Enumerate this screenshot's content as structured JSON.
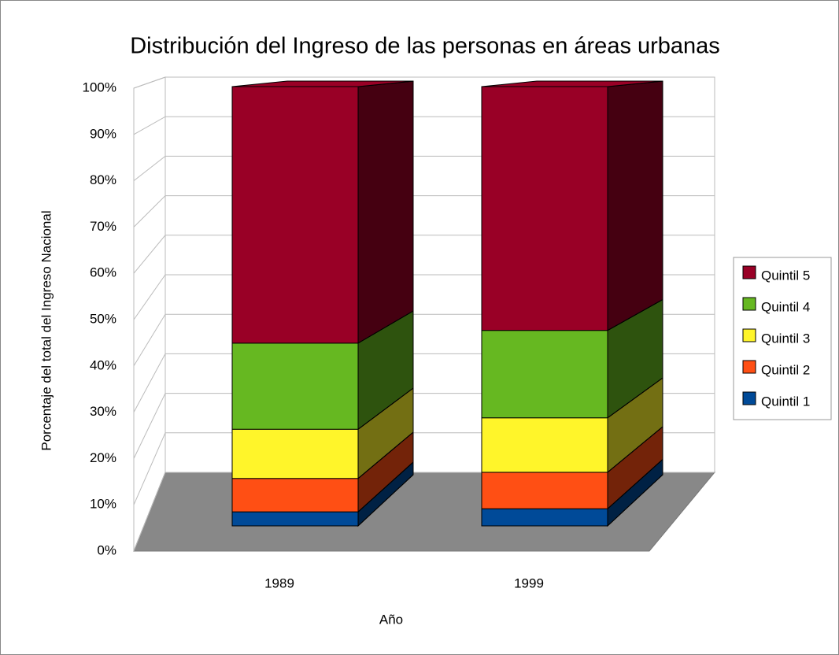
{
  "chart_data": {
    "type": "bar3d_stacked",
    "title": "Distribución del Ingreso de las personas en áreas urbanas",
    "y_label": "Porcentaje del total del Ingreso Nacional",
    "x_label": "Año",
    "categories": [
      "1989",
      "1999"
    ],
    "series": [
      {
        "name": "Quintil 1",
        "color": "#004a98",
        "values": [
          3.2,
          3.9
        ]
      },
      {
        "name": "Quintil 2",
        "color": "#ff4f14",
        "values": [
          7.6,
          8.3
        ]
      },
      {
        "name": "Quintil 3",
        "color": "#fff52a",
        "values": [
          11.2,
          12.4
        ]
      },
      {
        "name": "Quintil 4",
        "color": "#66b821",
        "values": [
          19.6,
          19.9
        ]
      },
      {
        "name": "Quintil 5",
        "color": "#990026",
        "values": [
          58.4,
          55.5
        ]
      }
    ],
    "ylim": [
      0,
      100
    ],
    "yticks": [
      {
        "value": 0,
        "label": "0%"
      },
      {
        "value": 10,
        "label": "10%"
      },
      {
        "value": 20,
        "label": "20%"
      },
      {
        "value": 30,
        "label": "30%"
      },
      {
        "value": 40,
        "label": "40%"
      },
      {
        "value": 50,
        "label": "50%"
      },
      {
        "value": 60,
        "label": "60%"
      },
      {
        "value": 70,
        "label": "70%"
      },
      {
        "value": 80,
        "label": "80%"
      },
      {
        "value": 90,
        "label": "90%"
      },
      {
        "value": 100,
        "label": "100%"
      }
    ],
    "grid": true,
    "legend": "right"
  }
}
